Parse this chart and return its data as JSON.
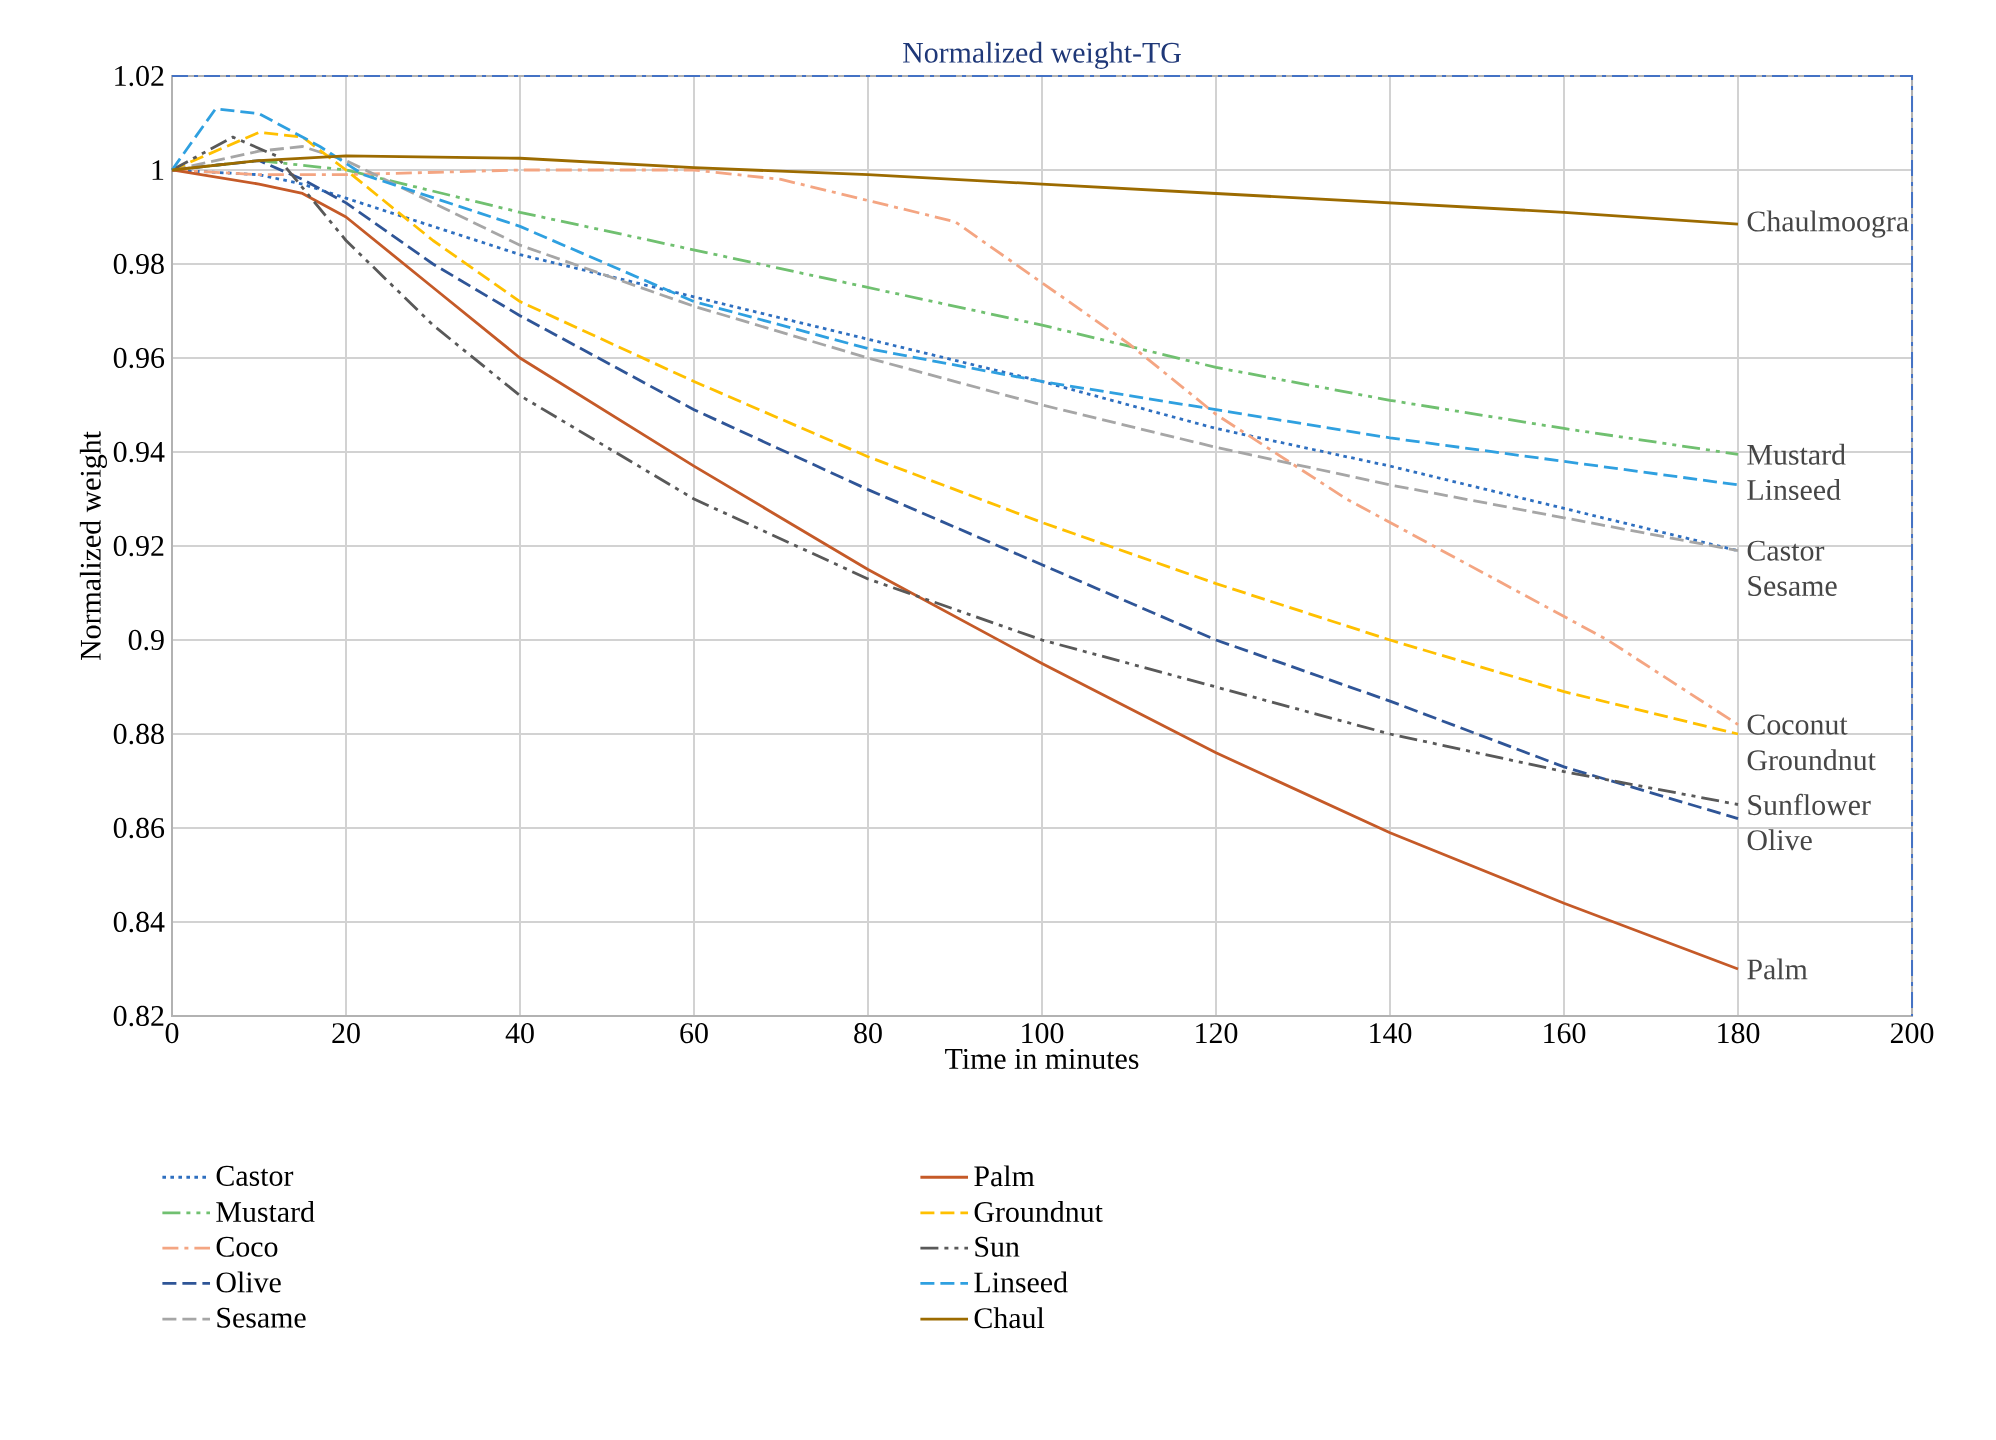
{
  "chart_data": {
    "type": "line",
    "title": "Normalized weight-TG",
    "xlabel": "Time in minutes",
    "ylabel": "Normalized weight",
    "xlim": [
      0,
      200
    ],
    "xticks": [
      0,
      20,
      40,
      60,
      80,
      100,
      120,
      140,
      160,
      180,
      200
    ],
    "ylim": [
      0.82,
      1.02
    ],
    "yticks": [
      0.82,
      0.84,
      0.86,
      0.88,
      0.9,
      0.92,
      0.94,
      0.96,
      0.98,
      1,
      1.02
    ],
    "grid": true,
    "legend": "bottom",
    "marker": "none",
    "series": [
      {
        "name": "Castor",
        "color": "#2e6fc0",
        "line_style": "dotted",
        "x": [
          0,
          10,
          15,
          20,
          30,
          40,
          60,
          80,
          100,
          120,
          140,
          160,
          180
        ],
        "values": [
          1,
          0.999,
          0.997,
          0.994,
          0.988,
          0.982,
          0.973,
          0.964,
          0.955,
          0.945,
          0.937,
          0.928,
          0.919
        ]
      },
      {
        "name": "Mustard",
        "color": "#70c070",
        "line_style": "dashdotdot",
        "x": [
          0,
          10,
          20,
          40,
          60,
          80,
          100,
          120,
          140,
          160,
          180
        ],
        "values": [
          1,
          1.002,
          1.0,
          0.991,
          0.983,
          0.975,
          0.967,
          0.958,
          0.951,
          0.945,
          0.9395
        ]
      },
      {
        "name": "Coco",
        "color": "#f4a582",
        "line_style": "dashdot",
        "x": [
          0,
          10,
          20,
          40,
          60,
          70,
          90,
          100,
          110,
          120,
          135,
          150,
          165,
          180
        ],
        "values": [
          1,
          0.999,
          0.999,
          1.0,
          1.0,
          0.998,
          0.989,
          0.976,
          0.963,
          0.948,
          0.93,
          0.915,
          0.9,
          0.882
        ]
      },
      {
        "name": "Olive",
        "color": "#2f5597",
        "line_style": "dashed",
        "x": [
          0,
          10,
          15,
          20,
          30,
          40,
          60,
          80,
          100,
          120,
          140,
          160,
          180
        ],
        "values": [
          1,
          1.002,
          0.998,
          0.993,
          0.98,
          0.969,
          0.949,
          0.932,
          0.916,
          0.9,
          0.887,
          0.873,
          0.862
        ]
      },
      {
        "name": "Sesame",
        "color": "#a6a6a6",
        "line_style": "dashed",
        "x": [
          0,
          10,
          15,
          20,
          40,
          60,
          80,
          100,
          120,
          140,
          160,
          180
        ],
        "values": [
          1,
          1.004,
          1.005,
          1.002,
          0.984,
          0.971,
          0.96,
          0.95,
          0.941,
          0.933,
          0.926,
          0.919
        ]
      },
      {
        "name": "Palm",
        "color": "#c55a28",
        "line_style": "solid",
        "x": [
          0,
          10,
          15,
          20,
          30,
          40,
          60,
          80,
          100,
          120,
          140,
          160,
          180
        ],
        "values": [
          1,
          0.997,
          0.995,
          0.99,
          0.975,
          0.96,
          0.937,
          0.915,
          0.895,
          0.876,
          0.859,
          0.844,
          0.83
        ]
      },
      {
        "name": "Groundnut",
        "color": "#ffc000",
        "line_style": "dashed",
        "x": [
          0,
          10,
          15,
          20,
          30,
          40,
          60,
          80,
          100,
          120,
          140,
          160,
          180
        ],
        "values": [
          1,
          1.008,
          1.007,
          1.0,
          0.985,
          0.972,
          0.955,
          0.939,
          0.925,
          0.912,
          0.9,
          0.889,
          0.88
        ]
      },
      {
        "name": "Sun",
        "color": "#595959",
        "line_style": "dashdotdot",
        "x": [
          0,
          7,
          12,
          20,
          30,
          40,
          60,
          80,
          100,
          120,
          140,
          160,
          180
        ],
        "values": [
          1,
          1.007,
          1.003,
          0.985,
          0.967,
          0.952,
          0.93,
          0.913,
          0.9,
          0.89,
          0.88,
          0.872,
          0.865
        ]
      },
      {
        "name": "Linseed",
        "color": "#2fa0e0",
        "line_style": "dashed",
        "x": [
          0,
          5,
          10,
          17,
          22,
          40,
          60,
          80,
          100,
          120,
          140,
          160,
          180
        ],
        "values": [
          1,
          1.013,
          1.012,
          1.005,
          0.999,
          0.988,
          0.972,
          0.962,
          0.955,
          0.949,
          0.943,
          0.938,
          0.933
        ]
      },
      {
        "name": "Chaul",
        "color": "#9c6b00",
        "line_style": "solid",
        "x": [
          0,
          10,
          20,
          40,
          60,
          80,
          100,
          120,
          140,
          160,
          180
        ],
        "values": [
          1,
          1.002,
          1.003,
          1.0025,
          1.0005,
          0.999,
          0.997,
          0.995,
          0.993,
          0.991,
          0.9885
        ]
      }
    ],
    "annotations": [
      "Chaulmoogra",
      "Mustard",
      "Linseed",
      "Castor",
      "Sesame",
      "Coconut",
      "Groundnut",
      "Sunflower",
      "Olive",
      "Palm"
    ]
  }
}
